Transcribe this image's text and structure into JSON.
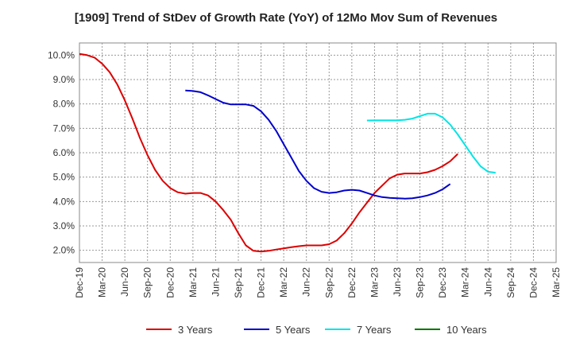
{
  "chart_data": {
    "type": "line",
    "title": "[1909]  Trend of StDev of Growth Rate (YoY) of 12Mo Mov Sum of Revenues",
    "xlabel": "",
    "ylabel": "",
    "ylim": [
      1.5,
      10.5
    ],
    "y_ticks": [
      2.0,
      3.0,
      4.0,
      5.0,
      6.0,
      7.0,
      8.0,
      9.0,
      10.0
    ],
    "y_tick_labels": [
      "2.0%",
      "3.0%",
      "4.0%",
      "5.0%",
      "6.0%",
      "7.0%",
      "8.0%",
      "9.0%",
      "10.0%"
    ],
    "x_tick_labels": [
      "Dec-19",
      "Mar-20",
      "Jun-20",
      "Sep-20",
      "Dec-20",
      "Mar-21",
      "Jun-21",
      "Sep-21",
      "Dec-21",
      "Mar-22",
      "Jun-22",
      "Sep-22",
      "Dec-22",
      "Mar-23",
      "Jun-23",
      "Sep-23",
      "Dec-23",
      "Mar-24",
      "Jun-24",
      "Sep-24",
      "Dec-24",
      "Mar-25"
    ],
    "grid": true,
    "legend_position": "bottom",
    "series": [
      {
        "name": "3 Years",
        "color": "#dd0000",
        "start_index": 0,
        "values": [
          10.05,
          10.0,
          9.9,
          9.65,
          9.3,
          8.8,
          8.15,
          7.4,
          6.6,
          5.9,
          5.3,
          4.85,
          4.55,
          4.38,
          4.32,
          4.35,
          4.35,
          4.25,
          4.0,
          3.65,
          3.25,
          2.7,
          2.2,
          1.98,
          1.95,
          1.98,
          2.03,
          2.08,
          2.13,
          2.17,
          2.2,
          2.2,
          2.2,
          2.25,
          2.4,
          2.7,
          3.1,
          3.55,
          3.95,
          4.35,
          4.65,
          4.95,
          5.1,
          5.15,
          5.15,
          5.15,
          5.2,
          5.3,
          5.45,
          5.65,
          5.95
        ]
      },
      {
        "name": "5 Years",
        "color": "#0000cc",
        "start_index": 14,
        "values": [
          8.55,
          8.53,
          8.48,
          8.35,
          8.2,
          8.05,
          7.98,
          7.98,
          7.98,
          7.92,
          7.7,
          7.35,
          6.9,
          6.35,
          5.8,
          5.25,
          4.85,
          4.55,
          4.4,
          4.35,
          4.38,
          4.45,
          4.48,
          4.45,
          4.35,
          4.25,
          4.18,
          4.15,
          4.13,
          4.12,
          4.13,
          4.18,
          4.25,
          4.35,
          4.5,
          4.72
        ]
      },
      {
        "name": "7 Years",
        "color": "#00e5e5",
        "start_index": 38,
        "values": [
          7.32,
          7.33,
          7.33,
          7.33,
          7.33,
          7.35,
          7.4,
          7.5,
          7.6,
          7.6,
          7.45,
          7.15,
          6.75,
          6.3,
          5.85,
          5.45,
          5.22,
          5.18
        ]
      },
      {
        "name": "10 Years",
        "color": "#007700",
        "start_index": 0,
        "values": []
      }
    ]
  }
}
